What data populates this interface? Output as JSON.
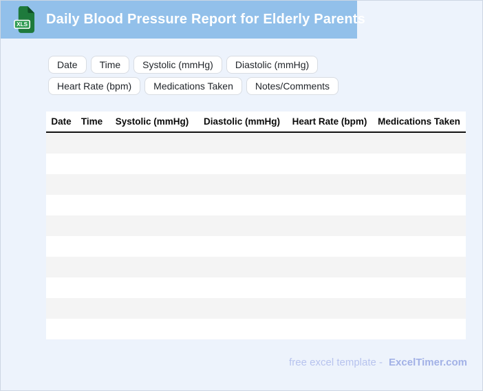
{
  "colors": {
    "header_band_bg": "#92c0ea",
    "page_bg": "#edf3fc",
    "page_border": "#ccd6e3",
    "chip_border": "#d8dce2",
    "chip_text": "#1f2328",
    "table_stripe": "#f4f4f4",
    "table_header_underline": "#111111",
    "icon_body_green": "#1e7a3c",
    "icon_fold_green": "#0e4f26",
    "icon_badge_green": "#2f9b52",
    "footer_text": "#b7c3ee",
    "footer_brand": "#a2b1e6"
  },
  "header": {
    "title": "Daily Blood Pressure Report for Elderly Parents",
    "icon": "xls-file-icon",
    "icon_label": "XLS"
  },
  "toolbar": {
    "chips": [
      "Date",
      "Time",
      "Systolic (mmHg)",
      "Diastolic (mmHg)",
      "Heart Rate (bpm)",
      "Medications Taken",
      "Notes/Comments"
    ]
  },
  "table": {
    "columns": [
      "Date",
      "Time",
      "Systolic (mmHg)",
      "Diastolic (mmHg)",
      "Heart Rate (bpm)",
      "Medications Taken"
    ],
    "empty_row_count": 10,
    "rows": []
  },
  "footer": {
    "text": "free excel template -",
    "brand": "ExcelTimer.com"
  }
}
